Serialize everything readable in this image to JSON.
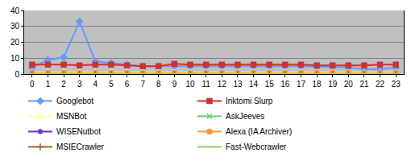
{
  "chart_data": {
    "type": "line",
    "categories": [
      "0",
      "1",
      "2",
      "3",
      "4",
      "5",
      "6",
      "7",
      "8",
      "9",
      "10",
      "11",
      "12",
      "13",
      "14",
      "15",
      "16",
      "17",
      "18",
      "19",
      "20",
      "21",
      "22",
      "23"
    ],
    "ylim": [
      0,
      40
    ],
    "yticks": [
      0,
      10,
      20,
      30,
      40
    ],
    "grid": true,
    "legend": "bottom",
    "series": [
      {
        "name": "Googlebot",
        "color": "#6699ff",
        "marker": "diamond",
        "values": [
          4,
          9,
          10.5,
          33,
          8,
          7,
          6,
          5,
          5,
          5,
          5,
          5,
          5,
          5,
          5,
          5,
          5,
          5,
          4.5,
          4.5,
          4,
          3,
          3,
          4
        ]
      },
      {
        "name": "Inktomi Slurp",
        "color": "#cc3333",
        "marker": "square",
        "values": [
          6,
          6,
          6,
          5.5,
          6,
          6,
          5.5,
          5,
          5,
          6.5,
          6,
          6,
          6,
          6,
          6,
          6,
          6,
          6,
          5.5,
          5.5,
          5.5,
          5.5,
          6,
          6
        ]
      },
      {
        "name": "MSNBot",
        "color": "#ffff99",
        "marker": "triangle",
        "values": [
          1,
          1,
          1,
          1,
          1,
          1,
          1,
          1,
          1,
          1,
          1,
          1,
          1,
          1,
          1,
          1,
          1,
          1,
          1,
          1,
          1,
          1,
          1,
          1
        ]
      },
      {
        "name": "AskJeeves",
        "color": "#66cc66",
        "marker": "x",
        "values": [
          0.5,
          0.5,
          0.5,
          0.5,
          0.5,
          0.5,
          0.5,
          0.5,
          0.5,
          0.5,
          0.5,
          0.5,
          0.5,
          0.5,
          0.5,
          0.5,
          0.5,
          0.5,
          0.5,
          0.5,
          0.5,
          0.5,
          0.5,
          0.5
        ]
      },
      {
        "name": "WISENutbot",
        "color": "#6633cc",
        "marker": "star",
        "values": [
          0,
          0,
          0,
          0,
          0,
          0,
          0,
          0,
          0,
          0,
          0,
          0,
          0,
          0,
          0,
          0,
          0,
          0,
          0,
          0,
          0,
          0,
          0,
          0
        ]
      },
      {
        "name": "Alexa (IA Archiver)",
        "color": "#ff9933",
        "marker": "circle",
        "values": [
          0.5,
          0.5,
          0.5,
          0.5,
          0.5,
          0.5,
          0.5,
          0.5,
          0.5,
          0.5,
          0.5,
          0.5,
          0.5,
          0.5,
          0.5,
          0.5,
          0.5,
          0.5,
          0.5,
          0.5,
          0.5,
          0.5,
          0.5,
          0.5
        ]
      },
      {
        "name": "MSIECrawler",
        "color": "#996633",
        "marker": "plus",
        "values": [
          0,
          0,
          0,
          0,
          0,
          0,
          0,
          0,
          0,
          0,
          0,
          0,
          0,
          0,
          0,
          0,
          0,
          0,
          0,
          0,
          0,
          0,
          0,
          0
        ]
      },
      {
        "name": "Fast-Webcrawler",
        "color": "#99cc66",
        "marker": "dash",
        "values": [
          0,
          0,
          0,
          0,
          0,
          0,
          0,
          0,
          0,
          0,
          0,
          0,
          0,
          0,
          0,
          0,
          0,
          0,
          0,
          0,
          0,
          0,
          0,
          0
        ]
      }
    ]
  }
}
